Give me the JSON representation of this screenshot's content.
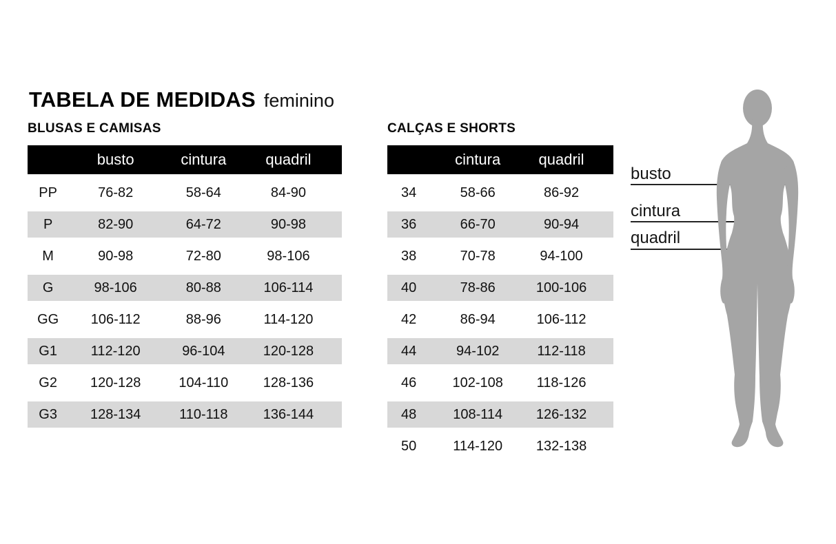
{
  "title": "TABELA DE MEDIDAS",
  "subtitle": "feminino",
  "colors": {
    "header_bg": "#000000",
    "header_text": "#ffffff",
    "stripe": "#d8d8d8",
    "silhouette": "#a5a5a5",
    "line": "#232323"
  },
  "tables": [
    {
      "section": "BLUSAS E CAMISAS",
      "columns": [
        "",
        "busto",
        "cintura",
        "quadril"
      ],
      "rows": [
        [
          "PP",
          "76-82",
          "58-64",
          "84-90"
        ],
        [
          "P",
          "82-90",
          "64-72",
          "90-98"
        ],
        [
          "M",
          "90-98",
          "72-80",
          "98-106"
        ],
        [
          "G",
          "98-106",
          "80-88",
          "106-114"
        ],
        [
          "GG",
          "106-112",
          "88-96",
          "114-120"
        ],
        [
          "G1",
          "112-120",
          "96-104",
          "120-128"
        ],
        [
          "G2",
          "120-128",
          "104-110",
          "128-136"
        ],
        [
          "G3",
          "128-134",
          "110-118",
          "136-144"
        ]
      ]
    },
    {
      "section": "CALÇAS E SHORTS",
      "columns": [
        "",
        "cintura",
        "quadril"
      ],
      "rows": [
        [
          "34",
          "58-66",
          "86-92"
        ],
        [
          "36",
          "66-70",
          "90-94"
        ],
        [
          "38",
          "70-78",
          "94-100"
        ],
        [
          "40",
          "78-86",
          "100-106"
        ],
        [
          "42",
          "86-94",
          "106-112"
        ],
        [
          "44",
          "94-102",
          "112-118"
        ],
        [
          "46",
          "102-108",
          "118-126"
        ],
        [
          "48",
          "108-114",
          "126-132"
        ],
        [
          "50",
          "114-120",
          "132-138"
        ]
      ]
    }
  ],
  "figure": {
    "labels": [
      "busto",
      "cintura",
      "quadril"
    ]
  }
}
